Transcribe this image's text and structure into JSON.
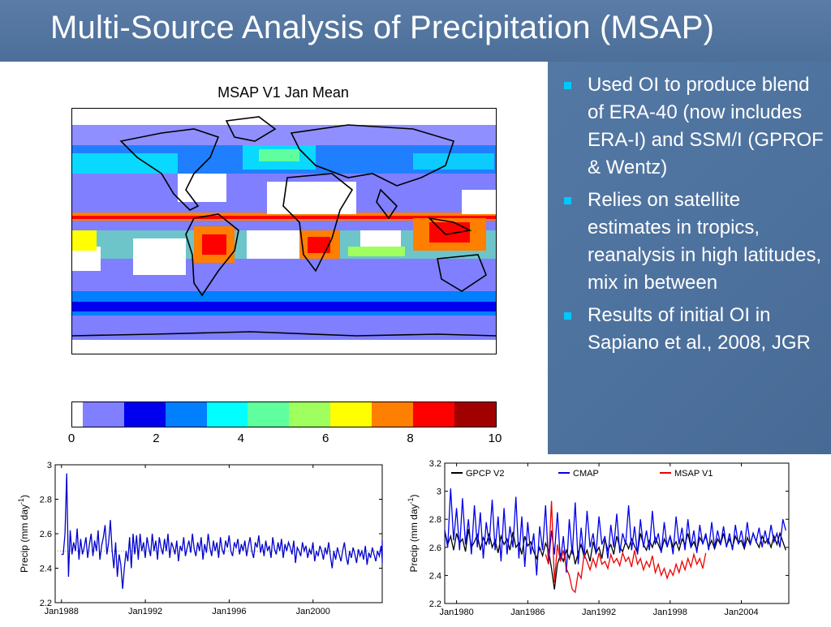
{
  "slide": {
    "title": "Multi-Source Analysis of Precipitation (MSAP)",
    "bullets": [
      "Used OI to produce blend of ERA-40 (now includes ERA-I) and SSM/I (GPROF & Wentz)",
      "Relies on satellite estimates in tropics, reanalysis in high latitudes, mix in between",
      "Results of initial OI in Sapiano et al., 2008, JGR"
    ],
    "bullet_color": "#00c8ff",
    "background_color": "#4d719d"
  },
  "map": {
    "title": "MSAP V1 Jan Mean",
    "colorbar": {
      "colors": [
        "#ffffff",
        "#7f7fff",
        "#0000ee",
        "#007fff",
        "#00ffff",
        "#5fff9f",
        "#9fff5f",
        "#ffff00",
        "#ff7f00",
        "#ff0000",
        "#a00000"
      ],
      "ticks": [
        "0",
        "2",
        "4",
        "6",
        "8",
        "10"
      ]
    }
  },
  "chart_data": [
    {
      "type": "line",
      "ylabel": "Precip (mm day",
      "ylabel_sup": "-1",
      "ylabel_close": ")",
      "ylim": [
        2.2,
        3.0
      ],
      "yticks": [
        "2.2",
        "2.4",
        "2.6",
        "2.8",
        "3"
      ],
      "xlim": [
        1987.7,
        2003.3
      ],
      "xticks": [
        {
          "label": "Jan1988",
          "x": 1988
        },
        {
          "label": "Jan1992",
          "x": 1992
        },
        {
          "label": "Jan1996",
          "x": 1996
        },
        {
          "label": "Jan2000",
          "x": 2000
        }
      ],
      "reference_line": 2.5,
      "series": [
        {
          "color": "#0000cc",
          "x_start": 1988.0,
          "x_step": 0.0833,
          "values": [
            2.48,
            2.48,
            2.6,
            2.95,
            2.35,
            2.62,
            2.48,
            2.55,
            2.5,
            2.63,
            2.45,
            2.57,
            2.48,
            2.52,
            2.58,
            2.46,
            2.54,
            2.6,
            2.47,
            2.56,
            2.5,
            2.62,
            2.45,
            2.53,
            2.58,
            2.65,
            2.48,
            2.55,
            2.68,
            2.5,
            2.4,
            2.55,
            2.35,
            2.48,
            2.42,
            2.28,
            2.4,
            2.5,
            2.44,
            2.58,
            2.4,
            2.6,
            2.48,
            2.59,
            2.45,
            2.6,
            2.5,
            2.55,
            2.46,
            2.58,
            2.52,
            2.47,
            2.6,
            2.5,
            2.56,
            2.45,
            2.58,
            2.52,
            2.48,
            2.57,
            2.5,
            2.6,
            2.46,
            2.55,
            2.52,
            2.48,
            2.56,
            2.44,
            2.53,
            2.5,
            2.58,
            2.47,
            2.52,
            2.56,
            2.49,
            2.6,
            2.51,
            2.47,
            2.55,
            2.5,
            2.58,
            2.45,
            2.54,
            2.49,
            2.6,
            2.52,
            2.47,
            2.56,
            2.5,
            2.55,
            2.46,
            2.58,
            2.51,
            2.48,
            2.56,
            2.52,
            2.59,
            2.5,
            2.47,
            2.55,
            2.52,
            2.57,
            2.48,
            2.54,
            2.5,
            2.56,
            2.47,
            2.53,
            2.58,
            2.5,
            2.46,
            2.55,
            2.52,
            2.59,
            2.49,
            2.54,
            2.47,
            2.56,
            2.5,
            2.53,
            2.46,
            2.58,
            2.51,
            2.48,
            2.55,
            2.5,
            2.57,
            2.46,
            2.54,
            2.5,
            2.55,
            2.52,
            2.48,
            2.56,
            2.43,
            2.52,
            2.5,
            2.47,
            2.55,
            2.5,
            2.53,
            2.46,
            2.51,
            2.48,
            2.55,
            2.44,
            2.5,
            2.47,
            2.53,
            2.5,
            2.45,
            2.52,
            2.48,
            2.55,
            2.47,
            2.4,
            2.5,
            2.45,
            2.52,
            2.48,
            2.44,
            2.5,
            2.55,
            2.47,
            2.42,
            2.5,
            2.46,
            2.52,
            2.48,
            2.43,
            2.51,
            2.47,
            2.5,
            2.45,
            2.53,
            2.42,
            2.49,
            2.46,
            2.52,
            2.48,
            2.44,
            2.5,
            2.47,
            2.53,
            2.45,
            2.5,
            2.43,
            2.56,
            2.52
          ]
        }
      ]
    },
    {
      "type": "line",
      "ylabel": "Precip (mm day",
      "ylabel_sup": "-1",
      "ylabel_close": ")",
      "ylim": [
        2.2,
        3.2
      ],
      "yticks": [
        "2.2",
        "2.4",
        "2.6",
        "2.8",
        "3",
        "3.2"
      ],
      "xlim": [
        1979.0,
        2008.0
      ],
      "xticks": [
        {
          "label": "Jan1980",
          "x": 1980
        },
        {
          "label": "Jan1986",
          "x": 1986
        },
        {
          "label": "Jan1992",
          "x": 1992
        },
        {
          "label": "Jan1998",
          "x": 1998
        },
        {
          "label": "Jan2004",
          "x": 2004
        }
      ],
      "legend": [
        "GPCP V2",
        "CMAP",
        "MSAP V1"
      ],
      "series": [
        {
          "name": "GPCP V2",
          "color": "#000000",
          "x_start": 1979.0,
          "x_step": 0.25,
          "values": [
            2.72,
            2.62,
            2.68,
            2.58,
            2.7,
            2.63,
            2.66,
            2.57,
            2.73,
            2.6,
            2.64,
            2.69,
            2.58,
            2.67,
            2.62,
            2.7,
            2.6,
            2.65,
            2.56,
            2.68,
            2.62,
            2.66,
            2.58,
            2.71,
            2.6,
            2.63,
            2.55,
            2.68,
            2.61,
            2.64,
            2.57,
            2.52,
            2.6,
            2.54,
            2.63,
            2.58,
            2.45,
            2.3,
            2.48,
            2.55,
            2.5,
            2.58,
            2.52,
            2.6,
            2.48,
            2.56,
            2.62,
            2.53,
            2.58,
            2.5,
            2.64,
            2.56,
            2.6,
            2.52,
            2.66,
            2.58,
            2.62,
            2.55,
            2.68,
            2.6,
            2.57,
            2.64,
            2.59,
            2.66,
            2.61,
            2.56,
            2.7,
            2.62,
            2.58,
            2.65,
            2.6,
            2.67,
            2.62,
            2.57,
            2.66,
            2.61,
            2.68,
            2.6,
            2.64,
            2.58,
            2.66,
            2.62,
            2.7,
            2.6,
            2.64,
            2.58,
            2.67,
            2.63,
            2.68,
            2.6,
            2.65,
            2.59,
            2.66,
            2.62,
            2.7,
            2.61,
            2.66,
            2.6,
            2.68,
            2.63,
            2.65,
            2.59,
            2.67,
            2.62,
            2.7,
            2.64,
            2.6,
            2.68,
            2.63,
            2.66,
            2.6,
            2.68,
            2.62,
            2.7,
            2.64,
            2.58
          ]
        },
        {
          "name": "CMAP",
          "color": "#0000ee",
          "x_start": 1979.0,
          "x_step": 0.25,
          "values": [
            2.72,
            2.6,
            3.02,
            2.65,
            2.88,
            2.58,
            2.95,
            2.62,
            2.8,
            2.55,
            2.9,
            2.6,
            2.85,
            2.52,
            2.78,
            2.62,
            2.94,
            2.58,
            2.82,
            2.5,
            2.88,
            2.55,
            2.75,
            2.6,
            2.96,
            2.52,
            2.82,
            2.46,
            2.78,
            2.55,
            2.7,
            2.4,
            2.75,
            2.58,
            2.9,
            2.48,
            2.72,
            2.55,
            2.85,
            2.5,
            2.68,
            2.42,
            2.8,
            2.55,
            2.92,
            2.48,
            2.74,
            2.52,
            2.86,
            2.6,
            2.7,
            2.55,
            2.82,
            2.62,
            2.68,
            2.52,
            2.76,
            2.6,
            2.84,
            2.56,
            2.7,
            2.62,
            2.9,
            2.58,
            2.75,
            2.55,
            2.8,
            2.6,
            2.72,
            2.58,
            2.86,
            2.62,
            2.7,
            2.56,
            2.78,
            2.6,
            2.68,
            2.55,
            2.82,
            2.62,
            2.74,
            2.58,
            2.8,
            2.6,
            2.72,
            2.56,
            2.76,
            2.62,
            2.7,
            2.58,
            2.78,
            2.6,
            2.72,
            2.62,
            2.75,
            2.6,
            2.7,
            2.58,
            2.76,
            2.62,
            2.72,
            2.6,
            2.78,
            2.62,
            2.7,
            2.64,
            2.74,
            2.6,
            2.72,
            2.62,
            2.76,
            2.64,
            2.7,
            2.6,
            2.8,
            2.72
          ]
        },
        {
          "name": "MSAP V1",
          "color": "#ee0000",
          "x_start": 1987.5,
          "x_step": 0.25,
          "values": [
            2.55,
            2.48,
            2.93,
            2.35,
            2.62,
            2.5,
            2.58,
            2.45,
            2.4,
            2.3,
            2.28,
            2.42,
            2.38,
            2.55,
            2.5,
            2.44,
            2.52,
            2.46,
            2.56,
            2.48,
            2.5,
            2.45,
            2.55,
            2.49,
            2.52,
            2.47,
            2.56,
            2.5,
            2.53,
            2.46,
            2.58,
            2.48,
            2.52,
            2.44,
            2.5,
            2.46,
            2.54,
            2.42,
            2.48,
            2.4,
            2.45,
            2.38,
            2.44,
            2.4,
            2.48,
            2.42,
            2.5,
            2.44,
            2.52,
            2.46,
            2.55,
            2.48,
            2.52,
            2.45,
            2.56
          ]
        }
      ]
    }
  ]
}
